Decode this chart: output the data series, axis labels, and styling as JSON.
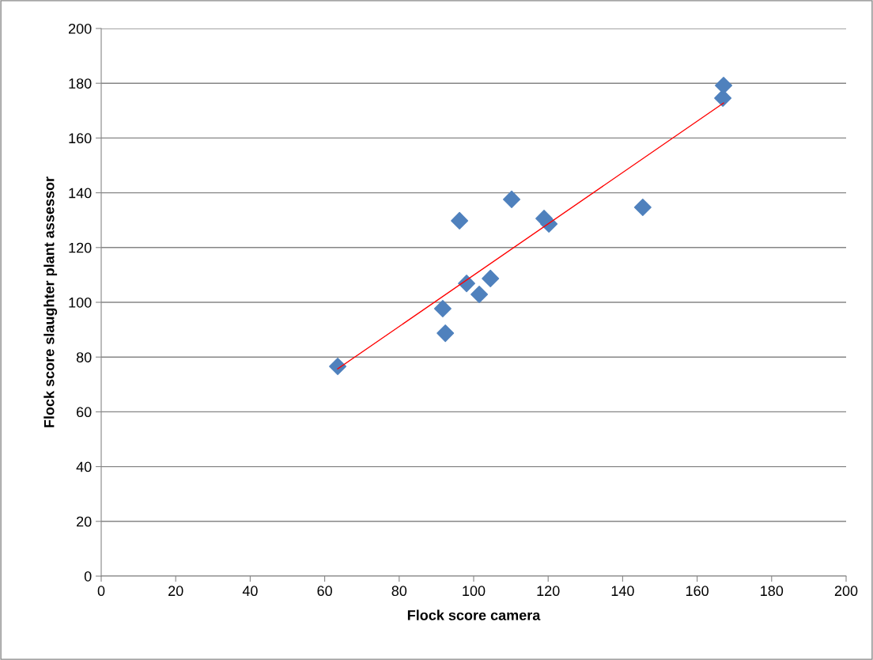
{
  "chart_data": {
    "type": "scatter",
    "xlabel": "Flock score camera",
    "ylabel": "Flock score slaughter plant assessor",
    "xlim": [
      0,
      200
    ],
    "xticks": [
      0,
      20,
      40,
      60,
      80,
      100,
      120,
      140,
      160,
      180,
      200
    ],
    "ylim": [
      0,
      200
    ],
    "yticks": [
      0,
      20,
      40,
      60,
      80,
      100,
      120,
      140,
      160,
      180,
      200
    ],
    "grid": "y",
    "marker": "diamond",
    "series": [
      {
        "color": "#4f81bd",
        "x": [
          63.5,
          91.7,
          92.4,
          96.2,
          98.1,
          101.5,
          104.5,
          110.2,
          118.9,
          120.2,
          145.4,
          166.9,
          167.1
        ],
        "values": [
          76.6,
          97.7,
          88.7,
          129.8,
          106.9,
          102.9,
          108.7,
          137.6,
          130.6,
          128.6,
          134.7,
          174.6,
          179.2
        ]
      },
      {
        "type": "line",
        "color": "#ff0000",
        "marker": "none",
        "x": [
          63.5,
          167.1
        ],
        "values": [
          75.7,
          172.8
        ]
      }
    ]
  }
}
